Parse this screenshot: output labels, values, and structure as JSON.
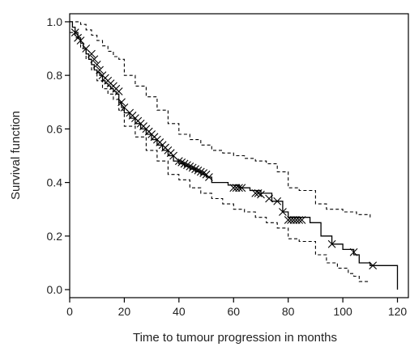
{
  "chart_data": {
    "type": "line",
    "title": "",
    "xlabel": "Time to tumour progression in months",
    "ylabel": "Survival function",
    "xlim": [
      0,
      124
    ],
    "ylim": [
      -0.03,
      1.03
    ],
    "x_ticks": [
      0,
      20,
      40,
      60,
      80,
      100,
      120
    ],
    "y_ticks": [
      0.0,
      0.2,
      0.4,
      0.6,
      0.8,
      1.0
    ],
    "x_tick_labels": [
      "0",
      "20",
      "40",
      "60",
      "80",
      "100",
      "120"
    ],
    "y_tick_labels": [
      "0.0",
      "0.2",
      "0.4",
      "0.6",
      "0.8",
      "1.0"
    ],
    "grid": false,
    "legend": "none",
    "series": [
      {
        "style": "solid-step",
        "x": [
          0,
          1,
          2,
          3,
          4,
          5,
          6,
          7,
          8,
          9,
          10,
          11,
          12,
          13,
          14,
          15,
          16,
          17,
          18,
          19,
          20,
          22,
          24,
          26,
          28,
          30,
          32,
          34,
          36,
          38,
          40,
          42,
          44,
          46,
          48,
          50,
          52,
          58,
          62,
          66,
          70,
          74,
          78,
          80,
          88,
          92,
          96,
          100,
          104,
          106,
          110,
          120
        ],
        "y": [
          1.0,
          0.98,
          0.96,
          0.94,
          0.92,
          0.9,
          0.88,
          0.86,
          0.84,
          0.82,
          0.81,
          0.8,
          0.78,
          0.77,
          0.76,
          0.75,
          0.74,
          0.73,
          0.7,
          0.68,
          0.66,
          0.64,
          0.62,
          0.6,
          0.58,
          0.56,
          0.54,
          0.52,
          0.5,
          0.48,
          0.47,
          0.46,
          0.45,
          0.44,
          0.43,
          0.42,
          0.4,
          0.39,
          0.38,
          0.37,
          0.36,
          0.33,
          0.29,
          0.27,
          0.25,
          0.2,
          0.17,
          0.15,
          0.13,
          0.1,
          0.09,
          0.0
        ]
      },
      {
        "style": "dashed-upper-ci",
        "x": [
          0,
          2,
          4,
          6,
          8,
          10,
          12,
          14,
          16,
          18,
          20,
          24,
          28,
          32,
          36,
          40,
          44,
          48,
          52,
          56,
          60,
          64,
          68,
          72,
          76,
          80,
          84,
          90,
          94,
          100,
          105,
          110
        ],
        "y": [
          1.0,
          1.0,
          0.99,
          0.97,
          0.95,
          0.93,
          0.91,
          0.89,
          0.87,
          0.86,
          0.8,
          0.76,
          0.72,
          0.67,
          0.62,
          0.58,
          0.56,
          0.54,
          0.52,
          0.51,
          0.5,
          0.49,
          0.48,
          0.47,
          0.44,
          0.38,
          0.37,
          0.32,
          0.3,
          0.29,
          0.28,
          0.27
        ]
      },
      {
        "style": "dashed-lower-ci",
        "x": [
          0,
          2,
          4,
          6,
          8,
          10,
          12,
          14,
          16,
          18,
          20,
          24,
          28,
          32,
          36,
          40,
          44,
          48,
          52,
          56,
          60,
          64,
          68,
          72,
          76,
          80,
          84,
          90,
          94,
          98,
          102,
          104,
          106,
          110
        ],
        "y": [
          0.96,
          0.94,
          0.9,
          0.86,
          0.82,
          0.78,
          0.75,
          0.73,
          0.71,
          0.67,
          0.61,
          0.57,
          0.52,
          0.48,
          0.43,
          0.41,
          0.38,
          0.36,
          0.34,
          0.32,
          0.3,
          0.29,
          0.27,
          0.25,
          0.23,
          0.19,
          0.18,
          0.13,
          0.1,
          0.08,
          0.06,
          0.05,
          0.03,
          0.03
        ]
      }
    ],
    "censored": {
      "x": [
        2,
        3,
        4,
        6,
        8,
        9,
        10,
        11,
        12,
        13,
        14,
        15,
        16,
        17,
        18,
        19,
        20,
        22,
        23,
        24,
        25,
        26,
        27,
        28,
        29,
        30,
        31,
        32,
        33,
        34,
        35,
        36,
        37,
        38,
        40,
        41,
        42,
        43,
        44,
        45,
        46,
        47,
        48,
        49,
        50,
        51,
        60,
        61,
        62,
        63,
        68,
        69,
        70,
        73,
        76,
        78,
        80,
        81,
        82,
        83,
        84,
        85,
        96,
        104,
        111
      ],
      "y": [
        0.96,
        0.94,
        0.93,
        0.9,
        0.88,
        0.86,
        0.84,
        0.82,
        0.8,
        0.79,
        0.78,
        0.77,
        0.76,
        0.75,
        0.74,
        0.7,
        0.68,
        0.66,
        0.65,
        0.64,
        0.63,
        0.62,
        0.61,
        0.6,
        0.59,
        0.58,
        0.57,
        0.56,
        0.55,
        0.54,
        0.53,
        0.52,
        0.51,
        0.5,
        0.48,
        0.475,
        0.47,
        0.465,
        0.46,
        0.455,
        0.45,
        0.445,
        0.44,
        0.435,
        0.43,
        0.42,
        0.38,
        0.38,
        0.38,
        0.38,
        0.36,
        0.36,
        0.355,
        0.34,
        0.33,
        0.29,
        0.26,
        0.26,
        0.26,
        0.26,
        0.26,
        0.26,
        0.17,
        0.14,
        0.09
      ]
    }
  }
}
